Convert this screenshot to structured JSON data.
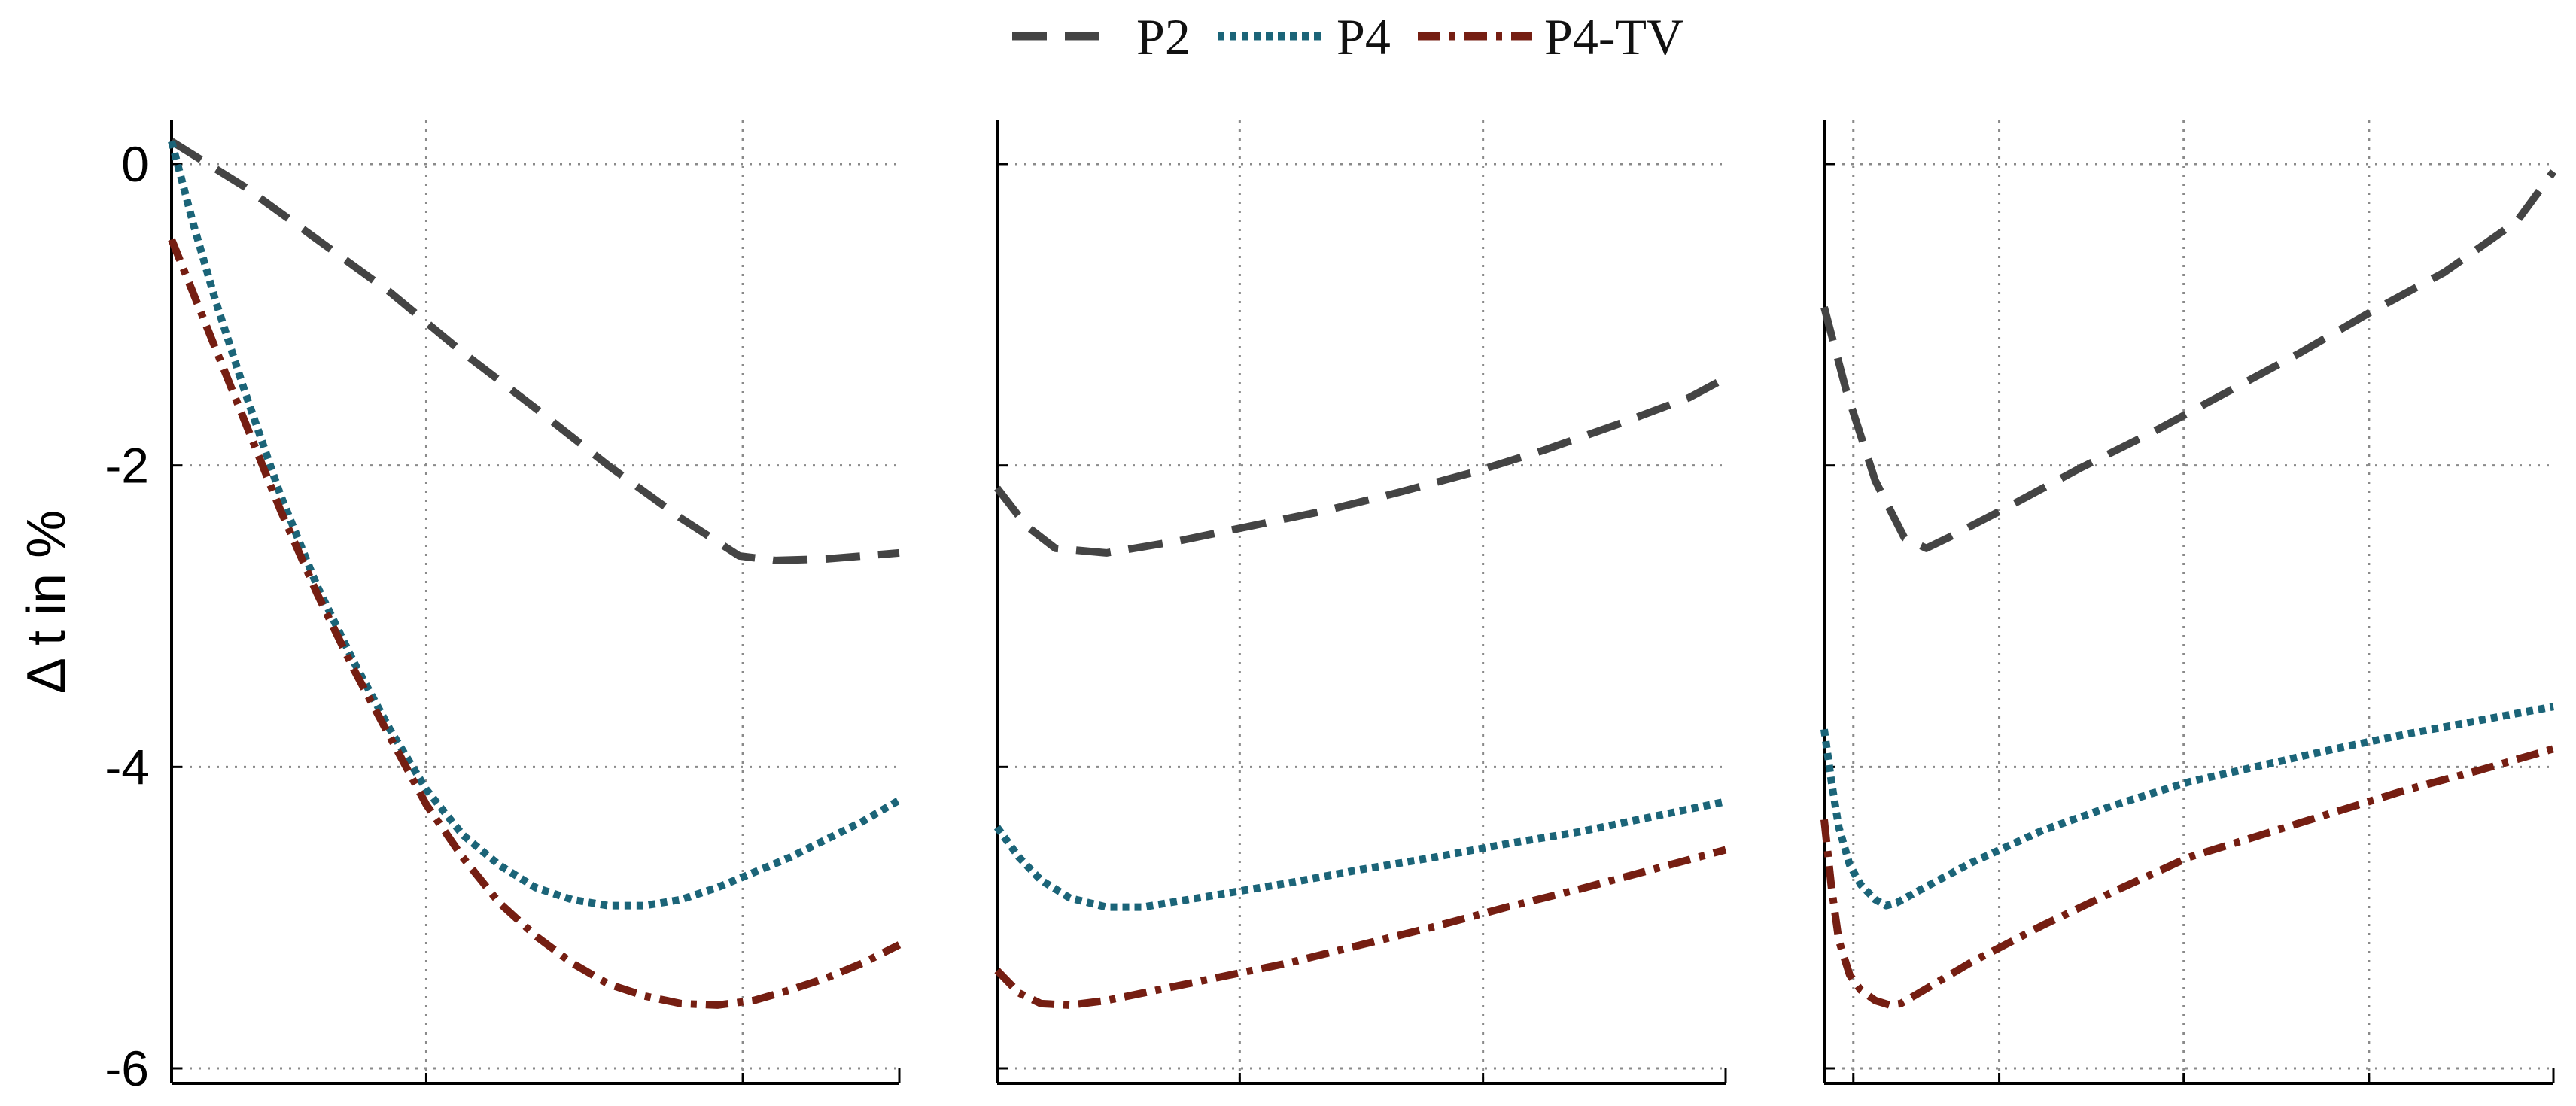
{
  "chart_data": {
    "type": "line",
    "ylabel": "Δ t in %",
    "ylim": [
      -6.1,
      0.3
    ],
    "yticks": [
      0,
      -2,
      -4,
      -6
    ],
    "ytick_labels": [
      "0",
      "-2",
      "-4",
      "-6"
    ],
    "grid": true,
    "legend": {
      "placement": "top-center",
      "entries": [
        {
          "name": "P2",
          "color": "#444444",
          "style": "dashed"
        },
        {
          "name": "P4",
          "color": "#1b6478",
          "style": "dotted"
        },
        {
          "name": "P4-TV",
          "color": "#751e12",
          "style": "dash-dot"
        }
      ]
    },
    "panels": [
      {
        "name": "panel-1",
        "xlim": [
          0,
          10
        ],
        "xgrid": [
          3.5,
          7.85
        ],
        "series": [
          {
            "name": "P2",
            "x": [
              0,
              1,
              2,
              3,
              4,
              5,
              6,
              7,
              7.8,
              8.3,
              9,
              10
            ],
            "y": [
              0.15,
              -0.15,
              -0.5,
              -0.85,
              -1.25,
              -1.62,
              -2.0,
              -2.35,
              -2.6,
              -2.63,
              -2.62,
              -2.58
            ]
          },
          {
            "name": "P4",
            "x": [
              0,
              0.3,
              0.6,
              1,
              1.5,
              2,
              2.5,
              3,
              3.5,
              4,
              4.5,
              5,
              5.5,
              6,
              6.5,
              7,
              7.5,
              8,
              8.5,
              9,
              9.5,
              10
            ],
            "y": [
              0.15,
              -0.4,
              -0.9,
              -1.5,
              -2.2,
              -2.8,
              -3.3,
              -3.75,
              -4.15,
              -4.45,
              -4.65,
              -4.8,
              -4.88,
              -4.92,
              -4.92,
              -4.88,
              -4.8,
              -4.7,
              -4.6,
              -4.48,
              -4.36,
              -4.22
            ]
          },
          {
            "name": "P4-TV",
            "x": [
              0,
              0.5,
              1,
              1.5,
              2,
              2.5,
              3,
              3.5,
              4,
              4.5,
              5,
              5.5,
              6,
              6.5,
              7,
              7.5,
              8,
              8.5,
              9,
              9.5,
              10
            ],
            "y": [
              -0.5,
              -1.1,
              -1.7,
              -2.3,
              -2.85,
              -3.35,
              -3.8,
              -4.25,
              -4.6,
              -4.9,
              -5.12,
              -5.3,
              -5.44,
              -5.52,
              -5.57,
              -5.58,
              -5.55,
              -5.48,
              -5.4,
              -5.3,
              -5.18
            ]
          }
        ]
      },
      {
        "name": "panel-2",
        "xlim": [
          0,
          10
        ],
        "xgrid": [
          3.33,
          6.67
        ],
        "series": [
          {
            "name": "P2",
            "x": [
              0,
              0.4,
              0.8,
              1.5,
              2.5,
              3.5,
              4.5,
              5.5,
              6.5,
              7.5,
              8.5,
              9.5,
              10
            ],
            "y": [
              -2.15,
              -2.4,
              -2.55,
              -2.58,
              -2.5,
              -2.4,
              -2.3,
              -2.18,
              -2.05,
              -1.9,
              -1.73,
              -1.55,
              -1.42
            ]
          },
          {
            "name": "P4",
            "x": [
              0,
              0.3,
              0.6,
              1,
              1.5,
              2,
              3,
              4,
              5,
              6,
              7,
              8,
              9,
              10
            ],
            "y": [
              -4.4,
              -4.6,
              -4.75,
              -4.87,
              -4.93,
              -4.93,
              -4.85,
              -4.77,
              -4.68,
              -4.6,
              -4.51,
              -4.43,
              -4.33,
              -4.23
            ]
          },
          {
            "name": "P4-TV",
            "x": [
              0,
              0.3,
              0.6,
              1,
              1.5,
              2,
              3,
              4,
              5,
              6,
              7,
              8,
              9,
              10
            ],
            "y": [
              -5.35,
              -5.5,
              -5.57,
              -5.58,
              -5.55,
              -5.5,
              -5.4,
              -5.3,
              -5.18,
              -5.06,
              -4.93,
              -4.81,
              -4.68,
              -4.55
            ]
          }
        ]
      },
      {
        "name": "panel-3",
        "xlim": [
          0,
          10
        ],
        "xgrid": [
          0.4,
          2.4,
          4.93,
          7.47
        ],
        "series": [
          {
            "name": "P2",
            "x": [
              0,
              0.3,
              0.7,
              1.1,
              1.4,
              1.7,
              2.5,
              3.5,
              4.5,
              5.5,
              6.5,
              7.5,
              8.5,
              9.5,
              10
            ],
            "y": [
              -0.95,
              -1.5,
              -2.1,
              -2.48,
              -2.55,
              -2.48,
              -2.28,
              -2.02,
              -1.78,
              -1.52,
              -1.26,
              -0.98,
              -0.72,
              -0.38,
              -0.05
            ]
          },
          {
            "name": "P4",
            "x": [
              0,
              0.1,
              0.2,
              0.35,
              0.5,
              0.7,
              0.85,
              1.0,
              1.3,
              2,
              3,
              4,
              5,
              6,
              7,
              8,
              9,
              10
            ],
            "y": [
              -3.75,
              -4.1,
              -4.4,
              -4.65,
              -4.78,
              -4.88,
              -4.92,
              -4.9,
              -4.82,
              -4.64,
              -4.42,
              -4.25,
              -4.1,
              -3.99,
              -3.88,
              -3.78,
              -3.69,
              -3.6
            ]
          },
          {
            "name": "P4-TV",
            "x": [
              0,
              0.1,
              0.2,
              0.35,
              0.5,
              0.7,
              0.9,
              1.05,
              1.3,
              2,
              3,
              4,
              5,
              6,
              7,
              8,
              9,
              10
            ],
            "y": [
              -4.35,
              -4.8,
              -5.15,
              -5.38,
              -5.48,
              -5.55,
              -5.58,
              -5.57,
              -5.5,
              -5.3,
              -5.05,
              -4.82,
              -4.6,
              -4.45,
              -4.3,
              -4.15,
              -4.02,
              -3.88
            ]
          }
        ]
      }
    ]
  }
}
